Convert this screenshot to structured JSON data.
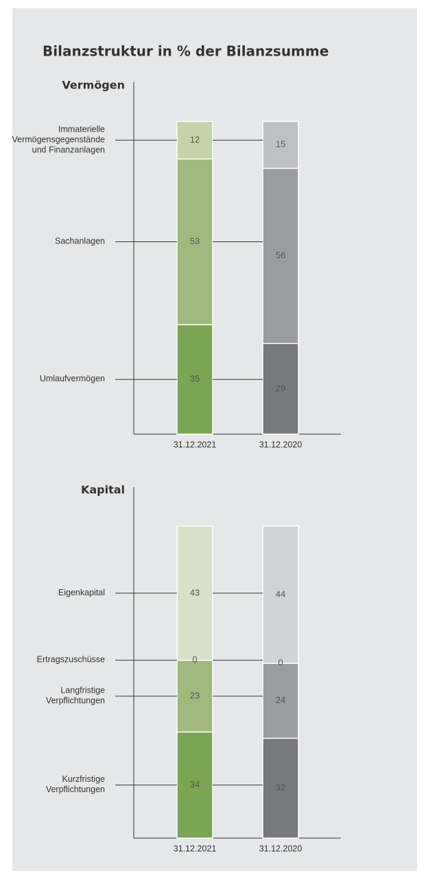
{
  "title": "Bilanzstruktur in % der Bilanzsumme",
  "chart_data": [
    {
      "type": "bar",
      "stacked": true,
      "title": "Vermögen",
      "categories": [
        "31.12.2021",
        "31.12.2020"
      ],
      "ylim": [
        0,
        100
      ],
      "series": [
        {
          "name": "Umlaufvermögen",
          "colors": [
            "#7ba453",
            "#78797c"
          ],
          "values": [
            35,
            29
          ]
        },
        {
          "name": "Sachanlagen",
          "colors": [
            "#a1b97e",
            "#9b9c9f"
          ],
          "values": [
            53,
            56
          ]
        },
        {
          "name": "Immaterielle\nVermögensgegenstände\nund Finanzanlagen",
          "colors": [
            "#c4d3a9",
            "#bfc0c3"
          ],
          "values": [
            12,
            15
          ]
        }
      ]
    },
    {
      "type": "bar",
      "stacked": true,
      "title": "Kapital",
      "categories": [
        "31.12.2021",
        "31.12.2020"
      ],
      "ylim": [
        0,
        100
      ],
      "series": [
        {
          "name": "Kurzfristige\nVerpflichtungen",
          "colors": [
            "#7ba453",
            "#78797c"
          ],
          "values": [
            34,
            32
          ]
        },
        {
          "name": "Langfristige\nVerpflichtungen",
          "colors": [
            "#a1b97e",
            "#9b9c9f"
          ],
          "values": [
            23,
            24
          ]
        },
        {
          "name": "Ertragszuschüsse",
          "colors": [
            "#c4d3a9",
            "#bfc0c3"
          ],
          "values": [
            0,
            0
          ]
        },
        {
          "name": "Eigenkapital",
          "colors": [
            "#d8e2ca",
            "#d2d3d5"
          ],
          "values": [
            43,
            44
          ]
        }
      ]
    }
  ]
}
